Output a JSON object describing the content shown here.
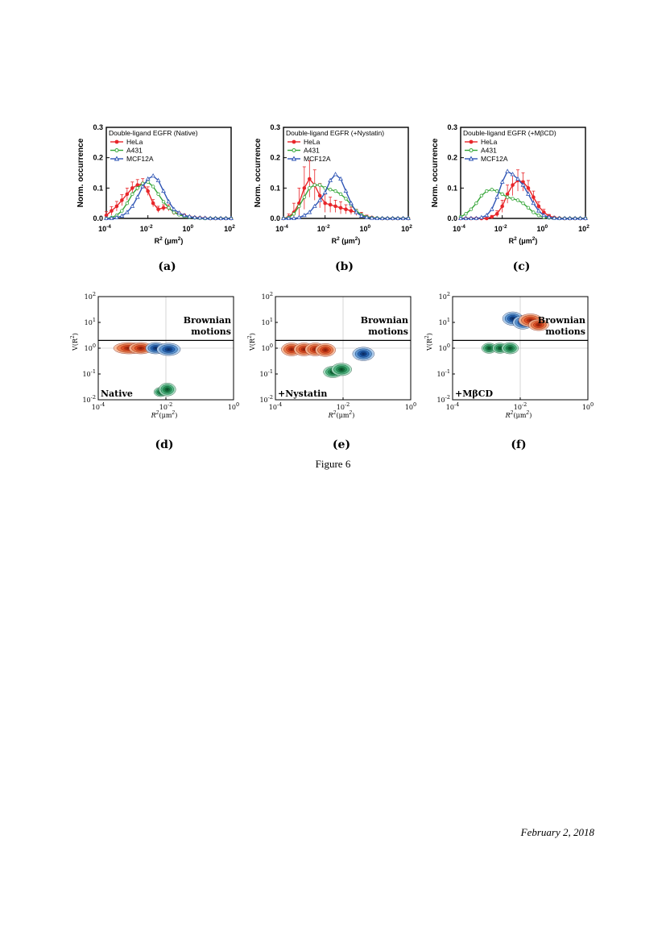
{
  "figure_caption": "Figure 6",
  "page_date": "February 2, 2018",
  "colors": {
    "HeLa": "#e8262a",
    "A431": "#35a638",
    "MCF12A": "#2f55b5"
  },
  "chart_data": [
    {
      "type": "line",
      "panel_label": "(a)",
      "title": "Double-ligand EGFR (Native)",
      "xlabel": "R",
      "xlabel_rest": "(μm",
      "xlabel_end": ")",
      "ylabel": "Norm. occurrence",
      "xscale": "log",
      "xlim": [
        0.0001,
        100
      ],
      "ylim": [
        0,
        0.3
      ],
      "xticks": [
        "10",
        "10",
        "10",
        "10"
      ],
      "xtick_exp": [
        "-4",
        "-2",
        "0",
        "2"
      ],
      "yticks": [
        "0.0",
        "0.1",
        "0.2",
        "0.3"
      ],
      "x": [
        0.0001,
        0.000178,
        0.000316,
        0.000562,
        0.001,
        0.00178,
        0.00316,
        0.00562,
        0.01,
        0.0178,
        0.0316,
        0.0562,
        0.1,
        0.178,
        0.316,
        0.562,
        1,
        1.78,
        3.16,
        5.62,
        10,
        17.8,
        31.6,
        56.2,
        100
      ],
      "series": [
        {
          "name": "HeLa",
          "values": [
            0.01,
            0.025,
            0.04,
            0.06,
            0.08,
            0.1,
            0.11,
            0.115,
            0.09,
            0.05,
            0.03,
            0.035,
            0.035,
            0.02,
            0.015,
            0.01,
            0.005,
            0.003,
            0.002,
            0.001,
            0.0,
            0.0,
            0.0,
            0.0,
            0.0
          ],
          "errors": [
            0.012,
            0.014,
            0.016,
            0.018,
            0.02,
            0.02,
            0.018,
            0.016,
            0.014,
            0.012,
            0.01,
            0.01,
            0.01,
            0.008,
            0.006,
            0.004,
            0.003,
            0.002,
            0.002,
            0.0,
            0.0,
            0.0,
            0.0,
            0.0,
            0.0
          ]
        },
        {
          "name": "A431",
          "values": [
            0.0,
            0.003,
            0.01,
            0.025,
            0.05,
            0.08,
            0.1,
            0.115,
            0.12,
            0.105,
            0.08,
            0.055,
            0.035,
            0.02,
            0.012,
            0.007,
            0.004,
            0.002,
            0.001,
            0.0,
            0.0,
            0.0,
            0.0,
            0.0,
            0.0
          ]
        },
        {
          "name": "MCF12A",
          "values": [
            0.0,
            0.0,
            0.003,
            0.008,
            0.02,
            0.04,
            0.07,
            0.105,
            0.13,
            0.14,
            0.125,
            0.09,
            0.055,
            0.03,
            0.018,
            0.01,
            0.006,
            0.003,
            0.002,
            0.001,
            0.0,
            0.0,
            0.0,
            0.0,
            0.0
          ]
        }
      ]
    },
    {
      "type": "line",
      "panel_label": "(b)",
      "title": "Double-ligand EGFR (+Nystatin)",
      "xlabel": "R",
      "xlabel_rest": "(μm",
      "xlabel_end": ")",
      "ylabel": "Norm. occurrence",
      "xscale": "log",
      "xlim": [
        0.0001,
        100
      ],
      "ylim": [
        0,
        0.3
      ],
      "xticks": [
        "10",
        "10",
        "10",
        "10"
      ],
      "xtick_exp": [
        "-4",
        "-2",
        "0",
        "2"
      ],
      "yticks": [
        "0.0",
        "0.1",
        "0.2",
        "0.3"
      ],
      "x": [
        0.0001,
        0.000178,
        0.000316,
        0.000562,
        0.001,
        0.00178,
        0.00316,
        0.00562,
        0.01,
        0.0178,
        0.0316,
        0.0562,
        0.1,
        0.178,
        0.316,
        0.562,
        1,
        1.78,
        3.16,
        5.62,
        10,
        17.8,
        31.6,
        56.2,
        100
      ],
      "series": [
        {
          "name": "HeLa",
          "values": [
            0.0,
            0.005,
            0.02,
            0.05,
            0.1,
            0.13,
            0.11,
            0.075,
            0.05,
            0.045,
            0.04,
            0.035,
            0.03,
            0.025,
            0.02,
            0.012,
            0.006,
            0.003,
            0.001,
            0.0,
            0.0,
            0.0,
            0.0,
            0.0,
            0.0
          ],
          "errors": [
            0.0,
            0.01,
            0.03,
            0.05,
            0.07,
            0.06,
            0.05,
            0.04,
            0.03,
            0.025,
            0.02,
            0.02,
            0.015,
            0.012,
            0.01,
            0.008,
            0.005,
            0.003,
            0.0,
            0.0,
            0.0,
            0.0,
            0.0,
            0.0,
            0.0
          ]
        },
        {
          "name": "A431",
          "values": [
            0.0,
            0.003,
            0.015,
            0.04,
            0.07,
            0.1,
            0.11,
            0.11,
            0.1,
            0.095,
            0.09,
            0.08,
            0.065,
            0.045,
            0.025,
            0.012,
            0.005,
            0.002,
            0.001,
            0.0,
            0.0,
            0.0,
            0.0,
            0.0,
            0.0
          ]
        },
        {
          "name": "MCF12A",
          "values": [
            0.0,
            0.0,
            0.0,
            0.003,
            0.01,
            0.02,
            0.04,
            0.06,
            0.085,
            0.125,
            0.145,
            0.13,
            0.09,
            0.05,
            0.02,
            0.008,
            0.003,
            0.001,
            0.0,
            0.0,
            0.0,
            0.0,
            0.0,
            0.0,
            0.0
          ]
        }
      ]
    },
    {
      "type": "line",
      "panel_label": "(c)",
      "title": "Double-ligand EGFR (+MβCD)",
      "xlabel": "R",
      "xlabel_rest": "(μm",
      "xlabel_end": ")",
      "ylabel": "Norm. occurrence",
      "xscale": "log",
      "xlim": [
        0.0001,
        100
      ],
      "ylim": [
        0,
        0.3
      ],
      "xticks": [
        "10",
        "10",
        "10",
        "10"
      ],
      "xtick_exp": [
        "-4",
        "-2",
        "0",
        "2"
      ],
      "yticks": [
        "0.0",
        "0.1",
        "0.2",
        "0.3"
      ],
      "x": [
        0.0001,
        0.000178,
        0.000316,
        0.000562,
        0.001,
        0.00178,
        0.00316,
        0.00562,
        0.01,
        0.0178,
        0.0316,
        0.0562,
        0.1,
        0.178,
        0.316,
        0.562,
        1,
        1.78,
        3.16,
        5.62,
        10,
        17.8,
        31.6,
        56.2,
        100
      ],
      "series": [
        {
          "name": "HeLa",
          "values": [
            0.0,
            0.0,
            0.0,
            0.0,
            0.0,
            0.0,
            0.005,
            0.015,
            0.04,
            0.08,
            0.11,
            0.125,
            0.12,
            0.1,
            0.07,
            0.04,
            0.02,
            0.008,
            0.003,
            0.001,
            0.0,
            0.0,
            0.0,
            0.0,
            0.0
          ],
          "errors": [
            0.0,
            0.0,
            0.0,
            0.0,
            0.0,
            0.0,
            0.005,
            0.01,
            0.02,
            0.03,
            0.035,
            0.035,
            0.03,
            0.025,
            0.02,
            0.015,
            0.01,
            0.005,
            0.0,
            0.0,
            0.0,
            0.0,
            0.0,
            0.0,
            0.0
          ]
        },
        {
          "name": "A431",
          "values": [
            0.005,
            0.015,
            0.03,
            0.05,
            0.075,
            0.09,
            0.095,
            0.09,
            0.08,
            0.07,
            0.065,
            0.06,
            0.05,
            0.035,
            0.02,
            0.01,
            0.004,
            0.002,
            0.001,
            0.0,
            0.0,
            0.0,
            0.0,
            0.0,
            0.0
          ]
        },
        {
          "name": "MCF12A",
          "values": [
            0.0,
            0.0,
            0.0,
            0.0,
            0.003,
            0.01,
            0.03,
            0.07,
            0.12,
            0.155,
            0.145,
            0.13,
            0.11,
            0.08,
            0.05,
            0.025,
            0.01,
            0.004,
            0.001,
            0.0,
            0.0,
            0.0,
            0.0,
            0.0,
            0.0
          ]
        }
      ]
    },
    {
      "type": "heatmap",
      "panel_label": "(d)",
      "annotation": "Native",
      "region_label_1": "Brownian",
      "region_label_2": "motions",
      "xlabel": "R",
      "xlabel_rest": "(μm",
      "xlabel_end": ")",
      "ylabel": "V(R",
      "ylabel_end": ")",
      "xscale": "log",
      "yscale": "log",
      "xlim": [
        0.0001,
        1
      ],
      "ylim": [
        0.01,
        100
      ],
      "xticks": [
        "10",
        "10",
        "10"
      ],
      "xtick_exp": [
        "-4",
        "-2",
        "0"
      ],
      "yticks": [
        "10",
        "10",
        "10",
        "10",
        "10"
      ],
      "ytick_exp": [
        "-2",
        "-1",
        "0",
        "1",
        "2"
      ],
      "brownian_line_y": 2,
      "blobs": [
        {
          "series": "HeLa",
          "x": 0.0008,
          "y": 1.0,
          "sx": 0.45,
          "sy": 0.22
        },
        {
          "series": "HeLa",
          "x": 0.0018,
          "y": 1.0,
          "sx": 0.35,
          "sy": 0.22
        },
        {
          "series": "MCF12A",
          "x": 0.005,
          "y": 1.0,
          "sx": 0.3,
          "sy": 0.22
        },
        {
          "series": "MCF12A",
          "x": 0.012,
          "y": 0.9,
          "sx": 0.35,
          "sy": 0.24
        },
        {
          "series": "A431",
          "x": 0.007,
          "y": 0.02,
          "sx": 0.2,
          "sy": 0.18
        },
        {
          "series": "A431",
          "x": 0.011,
          "y": 0.025,
          "sx": 0.25,
          "sy": 0.25
        }
      ]
    },
    {
      "type": "heatmap",
      "panel_label": "(e)",
      "annotation": "+Nystatin",
      "region_label_1": "Brownian",
      "region_label_2": "motions",
      "xlabel": "R",
      "xlabel_rest": "(μm",
      "xlabel_end": ")",
      "ylabel": "V(R",
      "ylabel_end": ")",
      "xscale": "log",
      "yscale": "log",
      "xlim": [
        0.0001,
        1
      ],
      "ylim": [
        0.01,
        100
      ],
      "xticks": [
        "10",
        "10",
        "10"
      ],
      "xtick_exp": [
        "-4",
        "-2",
        "0"
      ],
      "yticks": [
        "10",
        "10",
        "10",
        "10",
        "10"
      ],
      "ytick_exp": [
        "-2",
        "-1",
        "0",
        "1",
        "2"
      ],
      "brownian_line_y": 2,
      "blobs": [
        {
          "series": "HeLa",
          "x": 0.0003,
          "y": 0.9,
          "sx": 0.3,
          "sy": 0.25
        },
        {
          "series": "HeLa",
          "x": 0.0007,
          "y": 0.9,
          "sx": 0.3,
          "sy": 0.25
        },
        {
          "series": "HeLa",
          "x": 0.0015,
          "y": 0.9,
          "sx": 0.3,
          "sy": 0.25
        },
        {
          "series": "HeLa",
          "x": 0.003,
          "y": 0.85,
          "sx": 0.3,
          "sy": 0.25
        },
        {
          "series": "A431",
          "x": 0.005,
          "y": 0.12,
          "sx": 0.28,
          "sy": 0.22
        },
        {
          "series": "A431",
          "x": 0.009,
          "y": 0.15,
          "sx": 0.3,
          "sy": 0.24
        },
        {
          "series": "MCF12A",
          "x": 0.04,
          "y": 0.6,
          "sx": 0.32,
          "sy": 0.26
        }
      ]
    },
    {
      "type": "heatmap",
      "panel_label": "(f)",
      "annotation": "+MβCD",
      "region_label_1": "Brownian",
      "region_label_2": "motions",
      "xlabel": "R",
      "xlabel_rest": "(μm",
      "xlabel_end": ")",
      "ylabel": "V(R",
      "ylabel_end": ")",
      "xscale": "log",
      "yscale": "log",
      "xlim": [
        0.0001,
        1
      ],
      "ylim": [
        0.01,
        100
      ],
      "xticks": [
        "10",
        "10",
        "10"
      ],
      "xtick_exp": [
        "-4",
        "-2",
        "0"
      ],
      "yticks": [
        "10",
        "10",
        "10",
        "10",
        "10"
      ],
      "ytick_exp": [
        "-2",
        "-1",
        "0",
        "1",
        "2"
      ],
      "brownian_line_y": 2,
      "blobs": [
        {
          "series": "A431",
          "x": 0.0012,
          "y": 1.0,
          "sx": 0.22,
          "sy": 0.2
        },
        {
          "series": "A431",
          "x": 0.0025,
          "y": 1.0,
          "sx": 0.22,
          "sy": 0.2
        },
        {
          "series": "A431",
          "x": 0.005,
          "y": 1.0,
          "sx": 0.25,
          "sy": 0.22
        },
        {
          "series": "MCF12A",
          "x": 0.006,
          "y": 14,
          "sx": 0.3,
          "sy": 0.26
        },
        {
          "series": "MCF12A",
          "x": 0.012,
          "y": 10,
          "sx": 0.3,
          "sy": 0.26
        },
        {
          "series": "HeLa",
          "x": 0.02,
          "y": 12,
          "sx": 0.35,
          "sy": 0.25
        },
        {
          "series": "HeLa",
          "x": 0.035,
          "y": 8,
          "sx": 0.3,
          "sy": 0.22
        }
      ]
    }
  ]
}
